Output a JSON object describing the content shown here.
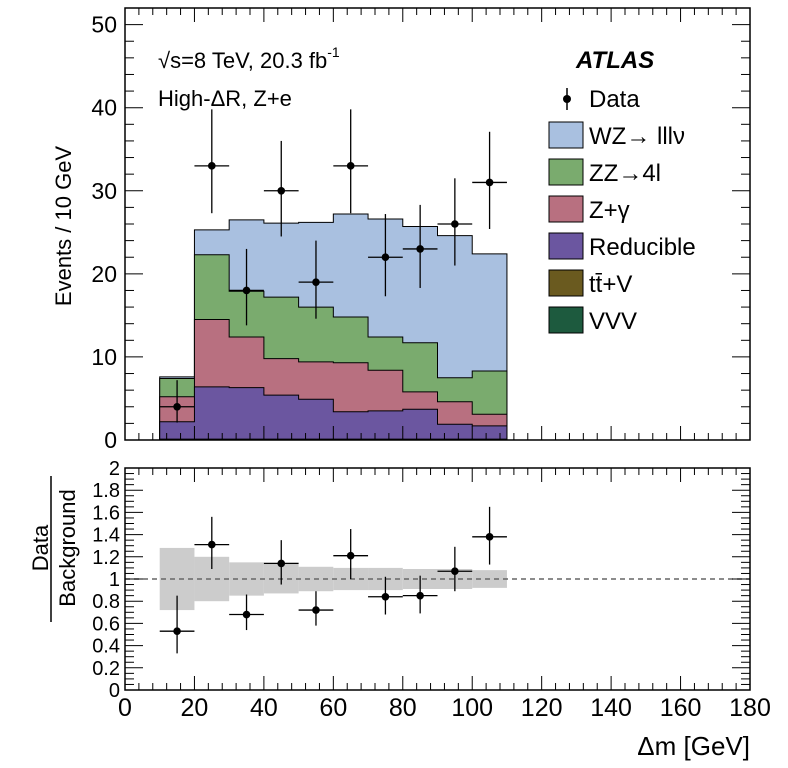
{
  "chart_data": [
    {
      "type": "bar",
      "subtype": "stacked-histogram",
      "ylabel": "Events / 10 GeV",
      "ylim": [
        0,
        52
      ],
      "yticks": [
        0,
        10,
        20,
        30,
        40,
        50
      ],
      "bin_edges": [
        10,
        20,
        30,
        40,
        50,
        60,
        70,
        80,
        90,
        100,
        110
      ],
      "annotations": {
        "energy": "√s=8 TeV, 20.3 fb",
        "lumi_exp": "-1",
        "selection": "High-ΔR, Z+e",
        "experiment": "ATLAS"
      },
      "series": [
        {
          "name": "VVV",
          "color": "#1d5a3e",
          "values": [
            0,
            0,
            0,
            0,
            0,
            0,
            0,
            0,
            0,
            0
          ]
        },
        {
          "name": "tt̄+V",
          "color": "#6a5a1f",
          "values": [
            0.1,
            0.1,
            0.1,
            0.1,
            0.1,
            0.1,
            0.1,
            0.1,
            0.1,
            0.1
          ]
        },
        {
          "name": "Reducible",
          "color": "#6b56a0",
          "values": [
            2.1,
            6.3,
            6.2,
            5.3,
            4.8,
            3.3,
            3.4,
            3.6,
            1.8,
            1.6
          ]
        },
        {
          "name": "Z+γ",
          "color": "#b87080",
          "values": [
            3.0,
            8.1,
            6.1,
            4.4,
            4.5,
            5.9,
            4.9,
            2.1,
            2.7,
            1.4
          ]
        },
        {
          "name": "ZZ→4l",
          "color": "#7aab6e",
          "values": [
            2.2,
            7.8,
            5.5,
            7.4,
            6.6,
            5.5,
            4.0,
            5.9,
            2.9,
            5.2
          ]
        },
        {
          "name": "WZ→ lllν",
          "color": "#a9c0e0",
          "values": [
            0.2,
            3.0,
            8.6,
            8.9,
            10.2,
            12.4,
            14.2,
            14.0,
            17.1,
            14.1
          ]
        }
      ],
      "data": {
        "name": "Data",
        "x": [
          15,
          25,
          35,
          45,
          55,
          65,
          75,
          85,
          95,
          105
        ],
        "y": [
          4,
          33,
          18,
          30,
          19,
          33,
          22,
          23,
          26,
          31
        ],
        "yerr_up": [
          3.2,
          6.8,
          5.0,
          6.0,
          5.0,
          6.8,
          5.2,
          5.3,
          5.5,
          6.1
        ],
        "yerr_down": [
          1.9,
          5.7,
          4.2,
          5.5,
          4.4,
          5.7,
          4.7,
          4.7,
          5.0,
          5.6
        ]
      },
      "legend": [
        "Data",
        "WZ→ lllν",
        "ZZ→4l",
        "Z+γ",
        "Reducible",
        "tt̄+V",
        "VVV"
      ],
      "legend_position": "top-right"
    },
    {
      "type": "scatter",
      "subtype": "ratio",
      "ylabel_num": "Data",
      "ylabel_den": "Background",
      "xlabel": "Δm [GeV]",
      "xlim": [
        0,
        180
      ],
      "xticks": [
        0,
        20,
        40,
        60,
        80,
        100,
        120,
        140,
        160,
        180
      ],
      "ylim": [
        0,
        2
      ],
      "yticks": [
        0,
        0.2,
        0.4,
        0.6,
        0.8,
        1,
        1.2,
        1.4,
        1.6,
        1.8,
        2
      ],
      "ytick_labels": [
        "0",
        "0.2",
        "0.4",
        "0.6",
        "0.8",
        "1",
        "1.2",
        "1.4",
        "1.6",
        "1.8",
        "2"
      ],
      "reference_line": 1,
      "uncertainty_band": {
        "bin_edges": [
          10,
          20,
          30,
          40,
          50,
          60,
          70,
          80,
          90,
          100,
          110
        ],
        "lower": [
          0.72,
          0.8,
          0.85,
          0.87,
          0.89,
          0.9,
          0.9,
          0.91,
          0.91,
          0.92
        ],
        "upper": [
          1.28,
          1.2,
          1.15,
          1.13,
          1.11,
          1.1,
          1.1,
          1.09,
          1.09,
          1.08
        ]
      },
      "points": {
        "x": [
          15,
          25,
          35,
          45,
          55,
          65,
          75,
          85,
          95,
          105
        ],
        "y": [
          0.53,
          1.31,
          0.68,
          1.14,
          0.72,
          1.21,
          0.84,
          0.85,
          1.07,
          1.38
        ],
        "yerr_up": [
          0.32,
          0.25,
          0.18,
          0.21,
          0.17,
          0.24,
          0.18,
          0.18,
          0.22,
          0.27
        ],
        "yerr_down": [
          0.2,
          0.22,
          0.14,
          0.19,
          0.14,
          0.21,
          0.16,
          0.16,
          0.18,
          0.25
        ]
      }
    }
  ]
}
